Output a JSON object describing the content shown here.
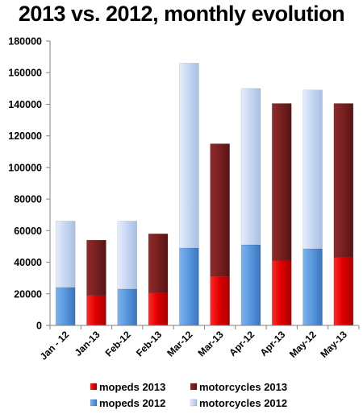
{
  "chart_data": {
    "type": "bar",
    "stacked": true,
    "title": "2013 vs. 2012, monthly evolution",
    "xlabel": "",
    "ylabel": "",
    "ylim": [
      0,
      180000
    ],
    "yticks": [
      0,
      20000,
      40000,
      60000,
      80000,
      100000,
      120000,
      140000,
      160000,
      180000
    ],
    "grid": false,
    "legend_position": "bottom",
    "categories": [
      "Jan - 12",
      "Jan-13",
      "Feb-12",
      "Feb-13",
      "Mar-12",
      "Mar-13",
      "Apr-12",
      "Apr-13",
      "May-12",
      "May-13"
    ],
    "bars": [
      {
        "category": "Jan - 12",
        "year": "2012",
        "mopeds": 24000,
        "motorcycles": 42000
      },
      {
        "category": "Jan-13",
        "year": "2013",
        "mopeds": 19000,
        "motorcycles": 35000
      },
      {
        "category": "Feb-12",
        "year": "2012",
        "mopeds": 23000,
        "motorcycles": 43000
      },
      {
        "category": "Feb-13",
        "year": "2013",
        "mopeds": 20500,
        "motorcycles": 37500
      },
      {
        "category": "Mar-12",
        "year": "2012",
        "mopeds": 49000,
        "motorcycles": 117000
      },
      {
        "category": "Mar-13",
        "year": "2013",
        "mopeds": 31000,
        "motorcycles": 84000
      },
      {
        "category": "Apr-12",
        "year": "2012",
        "mopeds": 51000,
        "motorcycles": 99000
      },
      {
        "category": "Apr-13",
        "year": "2013",
        "mopeds": 41000,
        "motorcycles": 99500
      },
      {
        "category": "May-12",
        "year": "2012",
        "mopeds": 48500,
        "motorcycles": 100500
      },
      {
        "category": "May-13",
        "year": "2013",
        "mopeds": 43000,
        "motorcycles": 97500
      }
    ],
    "legend": [
      {
        "key": "mopeds_2013",
        "label": "mopeds 2013",
        "color": "#e00000"
      },
      {
        "key": "motorcycles_2013",
        "label": "motorcycles 2013",
        "color": "#7a2020"
      },
      {
        "key": "mopeds_2012",
        "label": "mopeds 2012",
        "color": "#5a9ae0"
      },
      {
        "key": "motorcycles_2012",
        "label": "motorcycles 2012",
        "color": "#c8d8f2"
      }
    ],
    "colors": {
      "mopeds_2013": "#e00000",
      "motorcycles_2013": "#7a2020",
      "mopeds_2012": "#5a9ae0",
      "motorcycles_2012": "#c8d8f2",
      "axis": "#808080"
    }
  }
}
